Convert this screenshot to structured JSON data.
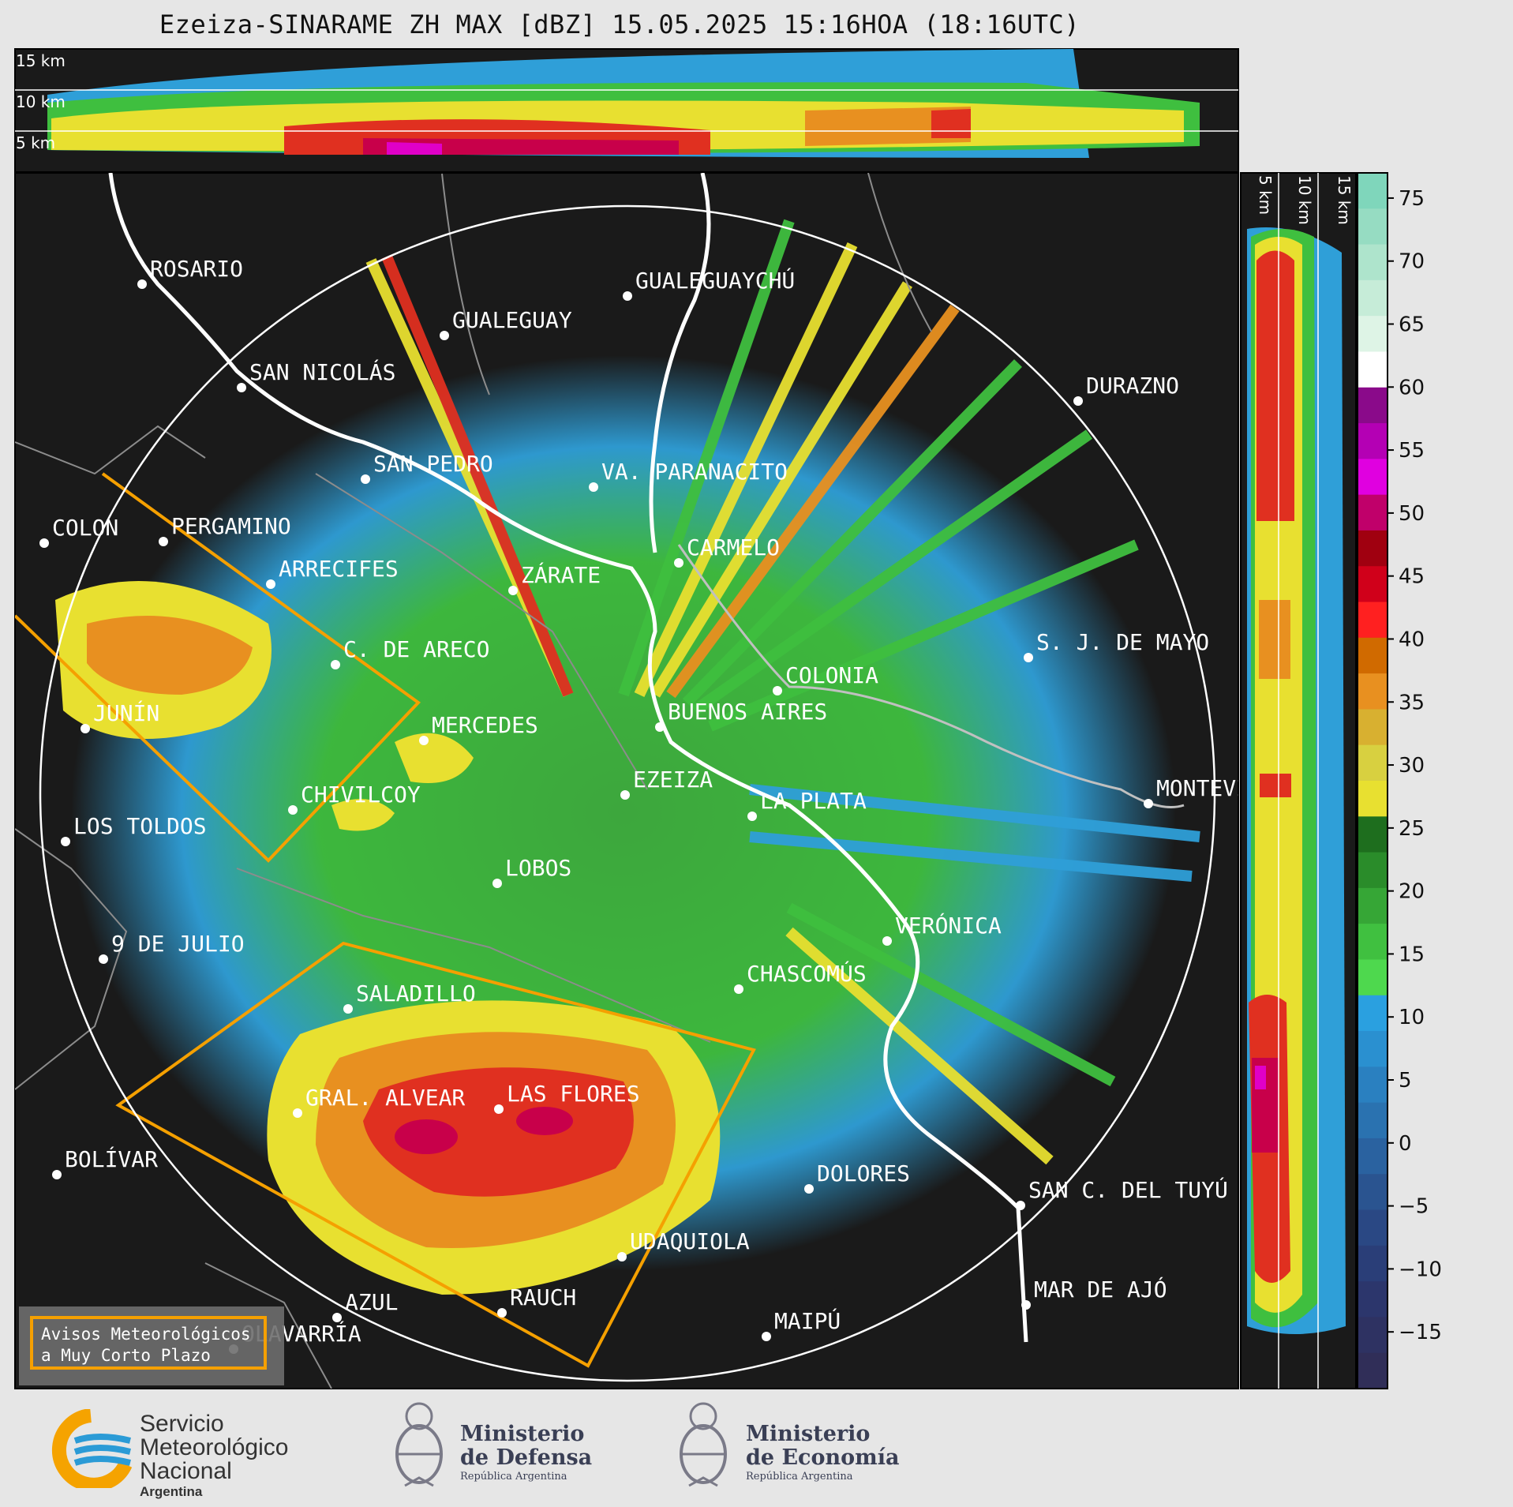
{
  "title": "Ezeiza-SINARAME ZH MAX [dBZ] 15.05.2025 15:16HOA (18:16UTC)",
  "cross_section_top": {
    "labels": [
      "15 km",
      "10 km",
      "5 km"
    ]
  },
  "cross_section_right": {
    "labels": [
      "5 km",
      "10 km",
      "15 km"
    ]
  },
  "colorbar": {
    "ticks": [
      "75",
      "70",
      "65",
      "60",
      "55",
      "50",
      "45",
      "40",
      "35",
      "30",
      "25",
      "20",
      "15",
      "10",
      "5",
      "0",
      "−5",
      "−10",
      "−15"
    ]
  },
  "cities": [
    {
      "name": "ROSARIO"
    },
    {
      "name": "GUALEGUAYCHÚ"
    },
    {
      "name": "GUALEGUAY"
    },
    {
      "name": "SAN NICOLÁS"
    },
    {
      "name": "DURAZNO"
    },
    {
      "name": "SAN PEDRO"
    },
    {
      "name": "VA. PARANACITO"
    },
    {
      "name": "COLON"
    },
    {
      "name": "PERGAMINO"
    },
    {
      "name": "CARMELO"
    },
    {
      "name": "ARRECIFES"
    },
    {
      "name": "ZÁRATE"
    },
    {
      "name": "S. J. DE MAYO"
    },
    {
      "name": "C. DE ARECO"
    },
    {
      "name": "COLONIA"
    },
    {
      "name": "JUNÍN"
    },
    {
      "name": "BUENOS AIRES"
    },
    {
      "name": "MERCEDES"
    },
    {
      "name": "MONTEVIDEO"
    },
    {
      "name": "EZEIZA"
    },
    {
      "name": "CHIVILCOY"
    },
    {
      "name": "LA PLATA"
    },
    {
      "name": "LOS TOLDOS"
    },
    {
      "name": "LOBOS"
    },
    {
      "name": "VERÓNICA"
    },
    {
      "name": "9 DE JULIO"
    },
    {
      "name": "CHASCOMÚS"
    },
    {
      "name": "SALADILLO"
    },
    {
      "name": "GRAL. ALVEAR"
    },
    {
      "name": "LAS FLORES"
    },
    {
      "name": "BOLÍVAR"
    },
    {
      "name": "DOLORES"
    },
    {
      "name": "SAN C. DEL TUYÚ"
    },
    {
      "name": "UDAQUIOLA"
    },
    {
      "name": "MAR DE AJÓ"
    },
    {
      "name": "AZUL"
    },
    {
      "name": "RAUCH"
    },
    {
      "name": "OLAVARRÍA"
    },
    {
      "name": "MAIPÚ"
    }
  ],
  "legend": {
    "line1": "Avisos Meteorológicos",
    "line2": "a Muy Corto Plazo"
  },
  "footer": {
    "smn": {
      "line1": "Servicio",
      "line2": "Meteorológico",
      "line3": "Nacional",
      "line4": "Argentina"
    },
    "defensa": {
      "line1": "Ministerio",
      "line2": "de Defensa",
      "line3": "República Argentina"
    },
    "economia": {
      "line1": "Ministerio",
      "line2": "de Economía",
      "line3": "República Argentina"
    }
  },
  "colors": {
    "background": "#1a1a1a",
    "warning_outline": "#f5a000",
    "smn_blue": "#2b9bd6",
    "smn_orange": "#f5a300"
  }
}
